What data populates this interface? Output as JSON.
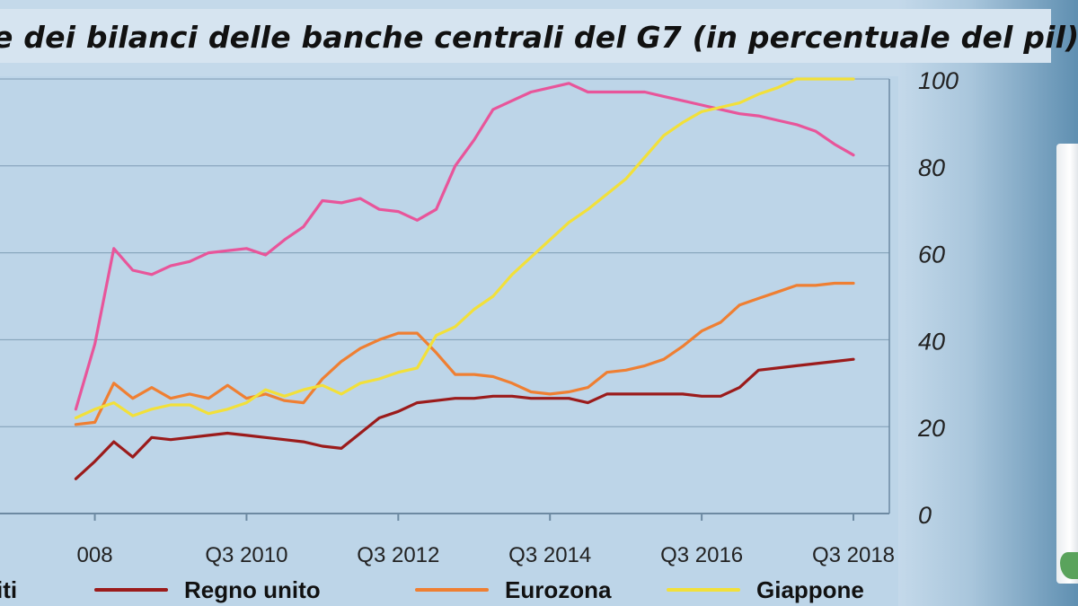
{
  "header": {
    "title": "e dei bilanci delle banche centrali del G7 (in percentuale del pil)"
  },
  "legend": [
    {
      "label": "iti",
      "color": "#e8559a"
    },
    {
      "label": "Regno unito",
      "color": "#9b1b1b"
    },
    {
      "label": "Eurozona",
      "color": "#ef7f32"
    },
    {
      "label": "Giappone",
      "color": "#f2e03a"
    }
  ],
  "chart_data": {
    "type": "line",
    "title": "e dei bilanci delle banche centrali del G7 (in percentuale del pil)",
    "xlabel": "",
    "ylabel": "",
    "xlim": [
      "Q2 2007",
      "Q3 2018"
    ],
    "ylim": [
      0,
      100
    ],
    "y_axis_position": "right",
    "y_ticks": [
      0,
      20,
      40,
      60,
      80,
      100
    ],
    "x_ticks": [
      "Q3 2008",
      "Q3 2010",
      "Q3 2012",
      "Q3 2014",
      "Q3 2016",
      "Q3 2018"
    ],
    "x_tick_labels": [
      "008",
      "Q3 2010",
      "Q3 2012",
      "Q3 2014",
      "Q3 2016",
      "Q3 2018"
    ],
    "grid": true,
    "legend_position": "bottom",
    "series": [
      {
        "name": "iti",
        "color": "#e8559a",
        "x": [
          "Q2 2008",
          "Q3 2008",
          "Q4 2008",
          "Q1 2009",
          "Q2 2009",
          "Q3 2009",
          "Q4 2009",
          "Q1 2010",
          "Q2 2010",
          "Q3 2010",
          "Q4 2010",
          "Q1 2011",
          "Q2 2011",
          "Q3 2011",
          "Q4 2011",
          "Q1 2012",
          "Q2 2012",
          "Q3 2012",
          "Q4 2012",
          "Q1 2013",
          "Q2 2013",
          "Q3 2013",
          "Q4 2013",
          "Q1 2014",
          "Q2 2014",
          "Q3 2014",
          "Q4 2014",
          "Q1 2015",
          "Q2 2015",
          "Q3 2015",
          "Q4 2015",
          "Q1 2016",
          "Q2 2016",
          "Q3 2016",
          "Q4 2016",
          "Q1 2017",
          "Q2 2017",
          "Q3 2017",
          "Q4 2017",
          "Q1 2018",
          "Q2 2018",
          "Q3 2018"
        ],
        "values": [
          24,
          39,
          61,
          56,
          55,
          57,
          58,
          60,
          60.5,
          61,
          59.5,
          63,
          66,
          72,
          71.5,
          72.5,
          70,
          69.5,
          67.5,
          70,
          80,
          86,
          93,
          95,
          97,
          98,
          99,
          97,
          97,
          97,
          97,
          96,
          95,
          94,
          93,
          92,
          91.5,
          90.5,
          89.5,
          88,
          85,
          82.5
        ]
      },
      {
        "name": "Regno unito",
        "color": "#9b1b1b",
        "x": [
          "Q2 2008",
          "Q3 2008",
          "Q4 2008",
          "Q1 2009",
          "Q2 2009",
          "Q3 2009",
          "Q4 2009",
          "Q1 2010",
          "Q2 2010",
          "Q3 2010",
          "Q4 2010",
          "Q1 2011",
          "Q2 2011",
          "Q3 2011",
          "Q4 2011",
          "Q1 2012",
          "Q2 2012",
          "Q3 2012",
          "Q4 2012",
          "Q1 2013",
          "Q2 2013",
          "Q3 2013",
          "Q4 2013",
          "Q1 2014",
          "Q2 2014",
          "Q3 2014",
          "Q4 2014",
          "Q1 2015",
          "Q2 2015",
          "Q3 2015",
          "Q4 2015",
          "Q1 2016",
          "Q2 2016",
          "Q3 2016",
          "Q4 2016",
          "Q1 2017",
          "Q2 2017",
          "Q3 2017",
          "Q4 2017",
          "Q1 2018",
          "Q2 2018",
          "Q3 2018"
        ],
        "values": [
          8,
          12,
          16.5,
          13,
          17.5,
          17,
          17.5,
          18,
          18.5,
          18,
          17.5,
          17,
          16.5,
          15.5,
          15,
          18.5,
          22,
          23.5,
          25.5,
          26,
          26.5,
          26.5,
          27,
          27,
          26.5,
          26.5,
          26.5,
          25.5,
          27.5,
          27.5,
          27.5,
          27.5,
          27.5,
          27,
          27,
          29,
          33,
          33.5,
          34,
          34.5,
          35,
          35.5
        ]
      },
      {
        "name": "Eurozona",
        "color": "#ef7f32",
        "x": [
          "Q2 2008",
          "Q3 2008",
          "Q4 2008",
          "Q1 2009",
          "Q2 2009",
          "Q3 2009",
          "Q4 2009",
          "Q1 2010",
          "Q2 2010",
          "Q3 2010",
          "Q4 2010",
          "Q1 2011",
          "Q2 2011",
          "Q3 2011",
          "Q4 2011",
          "Q1 2012",
          "Q2 2012",
          "Q3 2012",
          "Q4 2012",
          "Q1 2013",
          "Q2 2013",
          "Q3 2013",
          "Q4 2013",
          "Q1 2014",
          "Q2 2014",
          "Q3 2014",
          "Q4 2014",
          "Q1 2015",
          "Q2 2015",
          "Q3 2015",
          "Q4 2015",
          "Q1 2016",
          "Q2 2016",
          "Q3 2016",
          "Q4 2016",
          "Q1 2017",
          "Q2 2017",
          "Q3 2017",
          "Q4 2017",
          "Q1 2018",
          "Q2 2018",
          "Q3 2018"
        ],
        "values": [
          20.5,
          21,
          30,
          26.5,
          29,
          26.5,
          27.5,
          26.5,
          29.5,
          26.5,
          27.5,
          26,
          25.5,
          31,
          35,
          38,
          40,
          41.5,
          41.5,
          37,
          32,
          32,
          31.5,
          30,
          28,
          27.5,
          28,
          29,
          32.5,
          33,
          34,
          35.5,
          38.5,
          42,
          44,
          48,
          49.5,
          51,
          52.5,
          52.5,
          53,
          53
        ]
      },
      {
        "name": "Giappone",
        "color": "#f2e03a",
        "x": [
          "Q2 2008",
          "Q3 2008",
          "Q4 2008",
          "Q1 2009",
          "Q2 2009",
          "Q3 2009",
          "Q4 2009",
          "Q1 2010",
          "Q2 2010",
          "Q3 2010",
          "Q4 2010",
          "Q1 2011",
          "Q2 2011",
          "Q3 2011",
          "Q4 2011",
          "Q1 2012",
          "Q2 2012",
          "Q3 2012",
          "Q4 2012",
          "Q1 2013",
          "Q2 2013",
          "Q3 2013",
          "Q4 2013",
          "Q1 2014",
          "Q2 2014",
          "Q3 2014",
          "Q4 2014",
          "Q1 2015",
          "Q2 2015",
          "Q3 2015",
          "Q4 2015",
          "Q1 2016",
          "Q2 2016",
          "Q3 2016",
          "Q4 2016",
          "Q1 2017",
          "Q2 2017",
          "Q3 2017",
          "Q4 2017",
          "Q1 2018",
          "Q2 2018",
          "Q3 2018"
        ],
        "values": [
          22,
          24,
          25.5,
          22.5,
          24,
          25,
          25,
          23,
          24,
          25.5,
          28.5,
          27,
          28.5,
          29.5,
          27.5,
          30,
          31,
          32.5,
          33.5,
          41,
          43,
          47,
          50,
          55,
          59,
          63,
          67,
          70,
          73.5,
          77,
          82,
          87,
          90,
          92.5,
          93.5,
          94.5,
          96.5,
          98,
          100,
          100,
          100,
          100
        ]
      }
    ]
  }
}
